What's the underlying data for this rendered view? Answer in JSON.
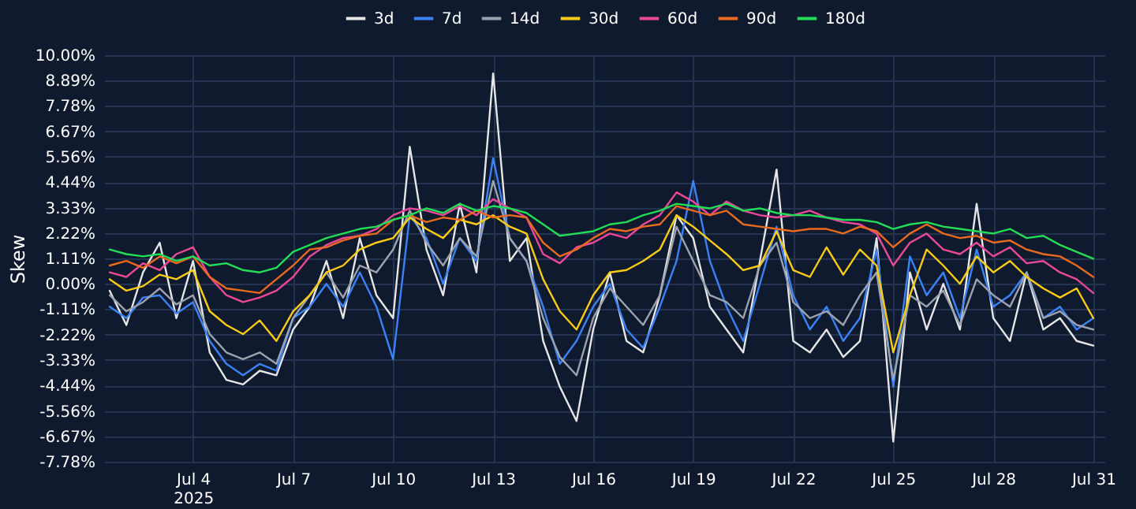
{
  "chart_data": {
    "type": "line",
    "ylabel": "Skew",
    "legend": "top",
    "grid": true,
    "line_style": "solid",
    "x": [
      "2025-07-01T12:00",
      "2025-07-02",
      "2025-07-02T12:00",
      "2025-07-03",
      "2025-07-03T12:00",
      "2025-07-04",
      "2025-07-04T12:00",
      "2025-07-05",
      "2025-07-05T12:00",
      "2025-07-06",
      "2025-07-06T12:00",
      "2025-07-07",
      "2025-07-07T12:00",
      "2025-07-08",
      "2025-07-08T12:00",
      "2025-07-09",
      "2025-07-09T12:00",
      "2025-07-10",
      "2025-07-10T12:00",
      "2025-07-11",
      "2025-07-11T12:00",
      "2025-07-12",
      "2025-07-12T12:00",
      "2025-07-13",
      "2025-07-13T12:00",
      "2025-07-14",
      "2025-07-14T12:00",
      "2025-07-15",
      "2025-07-15T12:00",
      "2025-07-16",
      "2025-07-16T12:00",
      "2025-07-17",
      "2025-07-17T12:00",
      "2025-07-18",
      "2025-07-18T12:00",
      "2025-07-19",
      "2025-07-19T12:00",
      "2025-07-20",
      "2025-07-20T12:00",
      "2025-07-21",
      "2025-07-21T12:00",
      "2025-07-22",
      "2025-07-22T12:00",
      "2025-07-23",
      "2025-07-23T12:00",
      "2025-07-24",
      "2025-07-24T12:00",
      "2025-07-25",
      "2025-07-25T12:00",
      "2025-07-26",
      "2025-07-26T12:00",
      "2025-07-27",
      "2025-07-27T12:00",
      "2025-07-28",
      "2025-07-28T12:00",
      "2025-07-29",
      "2025-07-29T12:00",
      "2025-07-30",
      "2025-07-30T12:00",
      "2025-07-31"
    ],
    "xlim": [
      "2025-07-01T08:00",
      "2025-07-31T08:00"
    ],
    "xticks": [
      {
        "value": "2025-07-04",
        "label": "Jul 4\n2025"
      },
      {
        "value": "2025-07-07",
        "label": "Jul 7"
      },
      {
        "value": "2025-07-10",
        "label": "Jul 10"
      },
      {
        "value": "2025-07-13",
        "label": "Jul 13"
      },
      {
        "value": "2025-07-16",
        "label": "Jul 16"
      },
      {
        "value": "2025-07-19",
        "label": "Jul 19"
      },
      {
        "value": "2025-07-22",
        "label": "Jul 22"
      },
      {
        "value": "2025-07-25",
        "label": "Jul 25"
      },
      {
        "value": "2025-07-28",
        "label": "Jul 28"
      },
      {
        "value": "2025-07-31",
        "label": "Jul 31"
      }
    ],
    "ylim": [
      -7.78,
      10
    ],
    "yticks": [
      {
        "value": 10,
        "label": "10.00%"
      },
      {
        "value": 8.89,
        "label": "8.89%"
      },
      {
        "value": 7.78,
        "label": "7.78%"
      },
      {
        "value": 6.67,
        "label": "6.67%"
      },
      {
        "value": 5.56,
        "label": "5.56%"
      },
      {
        "value": 4.44,
        "label": "4.44%"
      },
      {
        "value": 3.33,
        "label": "3.33%"
      },
      {
        "value": 2.22,
        "label": "2.22%"
      },
      {
        "value": 1.11,
        "label": "1.11%"
      },
      {
        "value": 0,
        "label": "0.00%"
      },
      {
        "value": -1.11,
        "label": "-1.11%"
      },
      {
        "value": -2.22,
        "label": "-2.22%"
      },
      {
        "value": -3.33,
        "label": "-3.33%"
      },
      {
        "value": -4.44,
        "label": "-4.44%"
      },
      {
        "value": -5.56,
        "label": "-5.56%"
      },
      {
        "value": -6.67,
        "label": "-6.67%"
      },
      {
        "value": -7.78,
        "label": "-7.78%"
      }
    ],
    "series": [
      {
        "name": "3d",
        "color": "#e6e6e6",
        "values": [
          -0.3,
          -1.8,
          0.5,
          1.8,
          -1.5,
          1.0,
          -3.0,
          -4.2,
          -4.4,
          -3.8,
          -4.0,
          -2.0,
          -1.0,
          1.0,
          -1.5,
          2.0,
          -0.5,
          -1.5,
          6.0,
          1.5,
          -0.5,
          3.5,
          0.5,
          9.2,
          1.0,
          2.0,
          -2.5,
          -4.5,
          -6.0,
          -2.0,
          0.5,
          -2.5,
          -3.0,
          -0.5,
          3.0,
          2.0,
          -1.0,
          -2.0,
          -3.0,
          1.0,
          5.0,
          -2.5,
          -3.0,
          -2.0,
          -3.2,
          -2.5,
          2.0,
          -6.9,
          0.5,
          -2.0,
          0.0,
          -2.0,
          3.5,
          -1.5,
          -2.5,
          0.5,
          -2.0,
          -1.5,
          -2.5,
          -2.7
        ]
      },
      {
        "name": "7d",
        "color": "#3b82f6",
        "values": [
          -1.0,
          -1.5,
          -0.6,
          -0.5,
          -1.3,
          -0.8,
          -2.5,
          -3.5,
          -4.0,
          -3.5,
          -3.8,
          -1.5,
          -1.0,
          0.0,
          -1.0,
          0.5,
          -1.0,
          -3.3,
          3.0,
          2.0,
          0.0,
          2.0,
          1.0,
          5.5,
          2.0,
          1.0,
          -1.0,
          -3.5,
          -2.5,
          -1.0,
          0.0,
          -2.0,
          -2.8,
          -1.0,
          1.0,
          4.5,
          1.0,
          -1.0,
          -2.5,
          0.0,
          2.5,
          -0.5,
          -2.0,
          -1.0,
          -2.5,
          -1.5,
          1.5,
          -4.5,
          1.2,
          -0.5,
          0.5,
          -1.5,
          1.5,
          -1.0,
          -0.5,
          0.5,
          -1.5,
          -1.0,
          -2.0,
          -1.5
        ]
      },
      {
        "name": "14d",
        "color": "#9ca3af",
        "values": [
          -0.5,
          -1.2,
          -0.8,
          -0.2,
          -0.9,
          -0.5,
          -2.2,
          -3.0,
          -3.3,
          -3.0,
          -3.5,
          -1.5,
          -0.5,
          0.5,
          -0.6,
          0.8,
          0.5,
          1.5,
          3.2,
          1.8,
          0.8,
          2.0,
          1.2,
          4.5,
          2.0,
          1.0,
          -1.5,
          -3.2,
          -4.0,
          -1.5,
          -0.2,
          -1.0,
          -1.8,
          -0.5,
          2.5,
          1.0,
          -0.5,
          -0.8,
          -1.5,
          0.8,
          1.8,
          -0.8,
          -1.5,
          -1.2,
          -1.8,
          -0.5,
          0.5,
          -4.2,
          -0.5,
          -1.0,
          -0.3,
          -1.8,
          0.2,
          -0.5,
          -1.0,
          0.5,
          -1.5,
          -1.2,
          -1.8,
          -2.0
        ]
      },
      {
        "name": "30d",
        "color": "#facc15",
        "values": [
          0.2,
          -0.3,
          -0.1,
          0.4,
          0.2,
          0.6,
          -1.2,
          -1.8,
          -2.2,
          -1.6,
          -2.5,
          -1.2,
          -0.5,
          0.5,
          0.8,
          1.5,
          1.8,
          2.0,
          2.9,
          2.4,
          2.0,
          2.8,
          2.6,
          3.0,
          2.5,
          2.2,
          0.2,
          -1.2,
          -2.0,
          -0.5,
          0.5,
          0.6,
          1.0,
          1.5,
          3.0,
          2.5,
          1.9,
          1.3,
          0.6,
          0.8,
          2.3,
          0.6,
          0.3,
          1.6,
          0.4,
          1.5,
          0.8,
          -3.0,
          -0.5,
          1.5,
          0.8,
          0.0,
          1.2,
          0.5,
          1.0,
          0.3,
          -0.2,
          -0.6,
          -0.2,
          -1.5
        ]
      },
      {
        "name": "60d",
        "color": "#ec4899",
        "values": [
          0.5,
          0.3,
          0.9,
          0.6,
          1.3,
          1.6,
          0.3,
          -0.5,
          -0.8,
          -0.6,
          -0.3,
          0.3,
          1.2,
          1.7,
          2.0,
          2.1,
          2.4,
          3.0,
          3.3,
          3.2,
          3.0,
          3.4,
          3.0,
          3.7,
          3.3,
          2.9,
          1.3,
          0.9,
          1.6,
          1.8,
          2.2,
          2.0,
          2.6,
          3.0,
          4.0,
          3.6,
          3.0,
          3.6,
          3.2,
          3.0,
          2.9,
          3.0,
          3.2,
          2.9,
          2.7,
          2.6,
          2.2,
          0.8,
          1.8,
          2.2,
          1.5,
          1.3,
          1.8,
          1.2,
          1.6,
          0.9,
          1.0,
          0.5,
          0.2,
          -0.4
        ]
      },
      {
        "name": "90d",
        "color": "#ea6a1f",
        "values": [
          0.8,
          1.0,
          0.7,
          1.2,
          0.9,
          1.2,
          0.3,
          -0.2,
          -0.3,
          -0.4,
          0.2,
          0.8,
          1.5,
          1.6,
          1.9,
          2.1,
          2.2,
          2.8,
          3.0,
          2.7,
          2.9,
          2.8,
          3.2,
          2.9,
          3.0,
          2.9,
          1.8,
          1.2,
          1.5,
          2.0,
          2.4,
          2.3,
          2.5,
          2.6,
          3.4,
          3.2,
          3.0,
          3.2,
          2.6,
          2.5,
          2.4,
          2.3,
          2.4,
          2.4,
          2.2,
          2.5,
          2.3,
          1.6,
          2.2,
          2.6,
          2.2,
          2.0,
          2.1,
          1.8,
          1.9,
          1.5,
          1.3,
          1.2,
          0.8,
          0.3
        ]
      },
      {
        "name": "180d",
        "color": "#22dd55",
        "values": [
          1.5,
          1.3,
          1.2,
          1.3,
          1.0,
          1.2,
          0.8,
          0.9,
          0.6,
          0.5,
          0.7,
          1.4,
          1.7,
          2.0,
          2.2,
          2.4,
          2.5,
          2.8,
          3.0,
          3.3,
          3.1,
          3.5,
          3.2,
          3.4,
          3.3,
          3.1,
          2.6,
          2.1,
          2.2,
          2.3,
          2.6,
          2.7,
          3.0,
          3.2,
          3.5,
          3.4,
          3.3,
          3.5,
          3.2,
          3.3,
          3.1,
          3.0,
          3.0,
          2.9,
          2.8,
          2.8,
          2.7,
          2.4,
          2.6,
          2.7,
          2.5,
          2.4,
          2.3,
          2.2,
          2.4,
          2.0,
          2.1,
          1.7,
          1.4,
          1.1
        ]
      }
    ]
  }
}
